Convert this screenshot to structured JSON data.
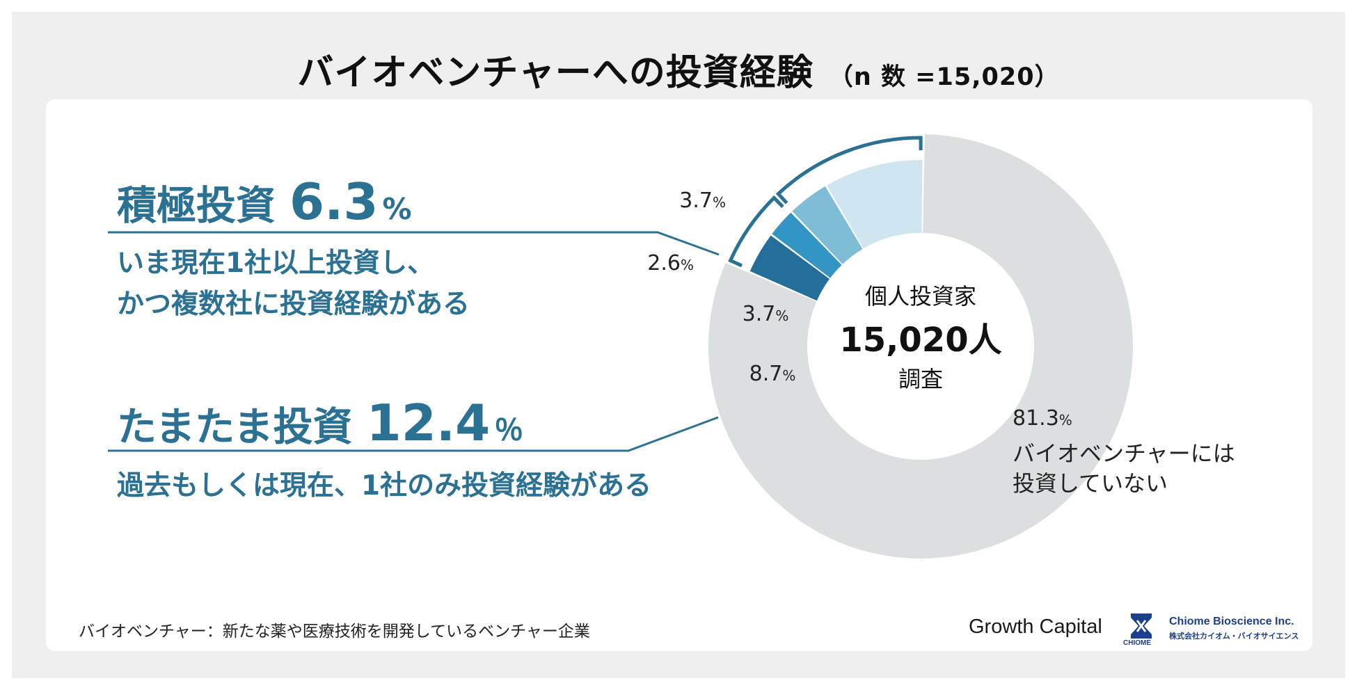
{
  "title": "バイオベンチャーへの投資経験",
  "title_sample": "（n 数 =15,020）",
  "active": {
    "label": "積極投資",
    "value": "6.3",
    "unit": "%",
    "desc_line1": "いま現在1社以上投資し、",
    "desc_line2": "かつ複数社に投資経験がある"
  },
  "occasional": {
    "label": "たまたま投資",
    "value": "12.4",
    "unit": "％",
    "desc": "過去もしくは現在、1社のみ投資経験がある"
  },
  "center": {
    "line1": "個人投資家",
    "line2": "15,020人",
    "line3": "調査"
  },
  "outside_label": {
    "line1": "バイオベンチャーには",
    "line2": "投資していない"
  },
  "footnote": "バイオベンチャー：新たな薬や医療技術を開発しているベンチャー企業",
  "logos": {
    "growth_capital": "Growth Capital",
    "chiome_mark": "CHIOME",
    "chiome_name": "Chiome Bioscience Inc.",
    "chiome_jp": "株式会社カイオム・バイオサイエンス"
  },
  "colors": {
    "accent": "#2a7194",
    "none": "#dcdfe0",
    "seg1": "#236f9a",
    "seg2": "#3295c3",
    "seg3": "#7fbcd6",
    "seg4": "#cfe6f0"
  },
  "chart_data": {
    "type": "pie",
    "title": "バイオベンチャーへの投資経験",
    "n": 15020,
    "unit": "%",
    "slices": [
      {
        "label": "3.7",
        "value": 3.7,
        "group": "積極投資",
        "color": "#236f9a"
      },
      {
        "label": "2.6",
        "value": 2.6,
        "group": "積極投資",
        "color": "#3295c3"
      },
      {
        "label": "3.7",
        "value": 3.7,
        "group": "たまたま投資",
        "color": "#7fbcd6"
      },
      {
        "label": "8.7",
        "value": 8.7,
        "group": "たまたま投資",
        "color": "#cfe6f0"
      },
      {
        "label": "81.3",
        "value": 81.3,
        "group": "バイオベンチャーには投資していない",
        "color": "#dcdfe0"
      }
    ]
  }
}
